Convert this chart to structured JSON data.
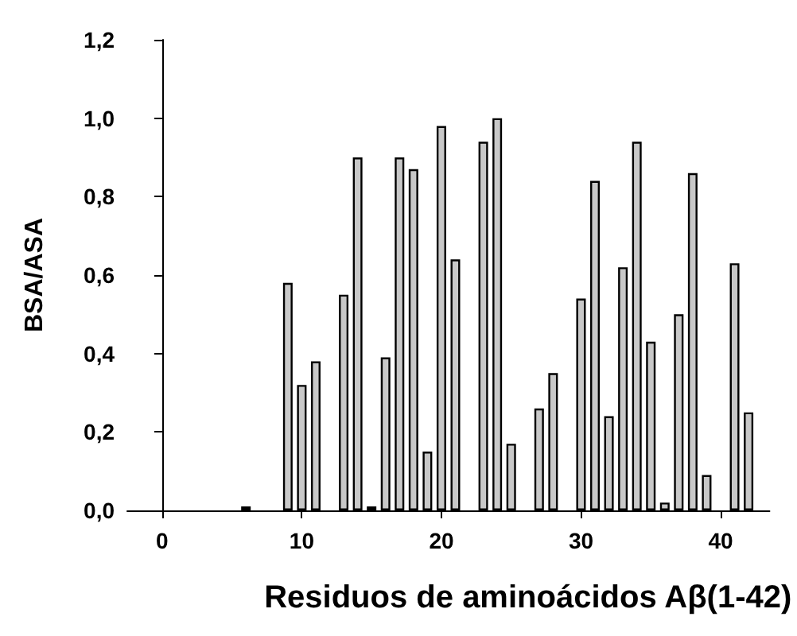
{
  "chart_data": {
    "type": "bar",
    "xlabel": "Residuos de aminoácidos Aβ(1-42)",
    "ylabel": "BSA/ASA",
    "x": [
      6,
      9,
      10,
      11,
      13,
      14,
      15,
      16,
      17,
      18,
      19,
      20,
      21,
      23,
      24,
      25,
      27,
      28,
      30,
      31,
      32,
      33,
      34,
      35,
      36,
      37,
      38,
      39,
      41,
      42
    ],
    "values": [
      0.01,
      0.58,
      0.32,
      0.38,
      0.55,
      0.9,
      0.01,
      0.39,
      0.9,
      0.87,
      0.15,
      0.98,
      0.64,
      0.94,
      1.0,
      0.17,
      0.26,
      0.35,
      0.54,
      0.84,
      0.24,
      0.62,
      0.94,
      0.43,
      0.02,
      0.5,
      0.86,
      0.09,
      0.63,
      0.25
    ],
    "color": "#c8c8c8",
    "xlim": [
      -2.5,
      43.5
    ],
    "xticks": [
      0,
      10,
      20,
      30,
      40
    ],
    "ylim": [
      0,
      1.2
    ],
    "yticks": [
      {
        "value": 0,
        "label": "0,0"
      },
      {
        "value": 0.2,
        "label": "0,2"
      },
      {
        "value": 0.4,
        "label": "0,4"
      },
      {
        "value": 0.6,
        "label": "0,6"
      },
      {
        "value": 0.8,
        "label": "0,8"
      },
      {
        "value": 1.0,
        "label": "1,0"
      },
      {
        "value": 1.2,
        "label": "1,2"
      }
    ],
    "grid": false
  }
}
